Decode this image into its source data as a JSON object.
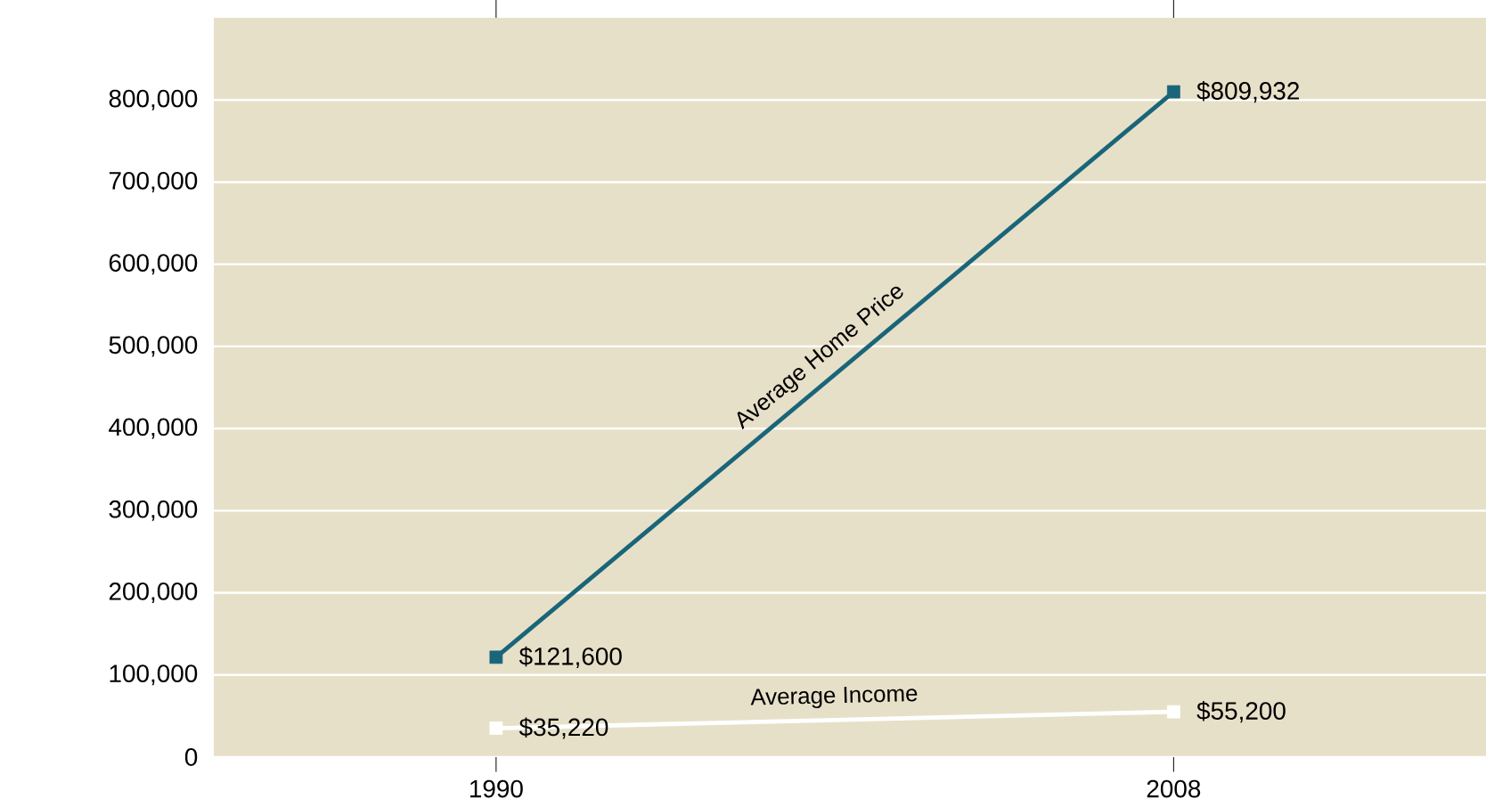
{
  "chart_data": {
    "type": "line",
    "x": [
      1990,
      2008
    ],
    "xlim": [
      1982.5,
      2016.3
    ],
    "xticks": [
      1990,
      2008
    ],
    "ylim": [
      0,
      900000
    ],
    "yticks": [
      0,
      {
        "value": 100000,
        "label": "100,000"
      },
      {
        "value": 200000,
        "label": "200,000"
      },
      {
        "value": 300000,
        "label": "300,000"
      },
      {
        "value": 400000,
        "label": "400,000"
      },
      {
        "value": 500000,
        "label": "500,000"
      },
      {
        "value": 600000,
        "label": "600,000"
      },
      {
        "value": 700000,
        "label": "700,000"
      },
      {
        "value": 800000,
        "label": "800,000"
      }
    ],
    "grid": "y",
    "legend": false,
    "marker": "square",
    "line_style": "solid",
    "series": [
      {
        "name": "Average Home Price",
        "color": "#19657a",
        "values": [
          121600,
          809932
        ],
        "value_labels": [
          "$121,600",
          "$809,932"
        ]
      },
      {
        "name": "Average Income",
        "color": "#ffffff",
        "values": [
          35220,
          55200
        ],
        "value_labels": [
          "$35,220",
          "$55,200"
        ]
      }
    ]
  }
}
